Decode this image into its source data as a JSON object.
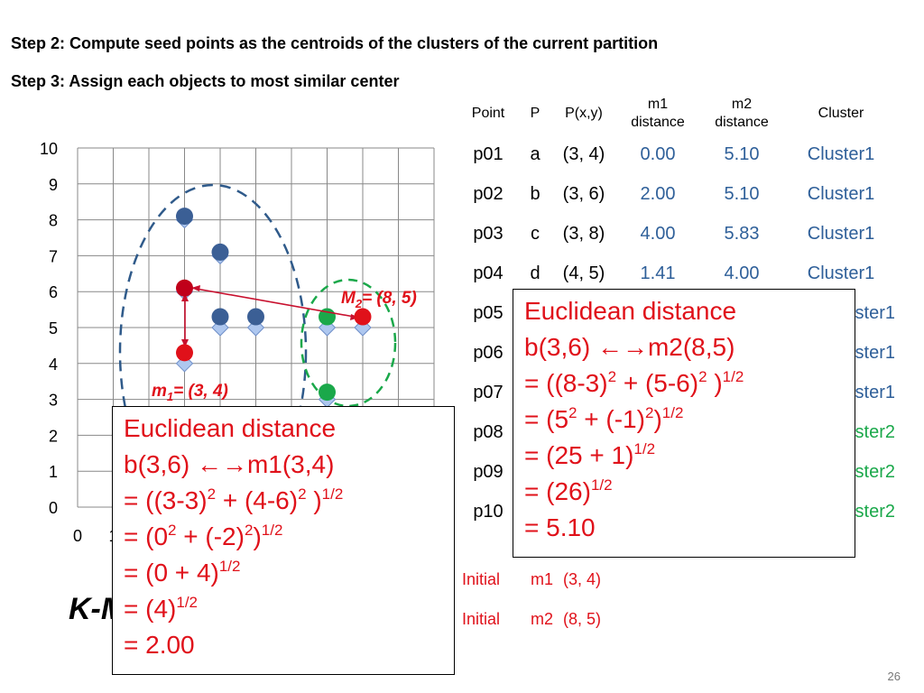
{
  "steps": {
    "step2": "Step 2: Compute seed points as the centroids of the clusters of the current partition",
    "step3": "Step 3: Assign each objects to most similar center"
  },
  "table": {
    "headers": [
      "Point",
      "P",
      "P(x,y)",
      "m1 distance",
      "m2 distance",
      "Cluster"
    ],
    "header_m1": [
      "m1",
      "distance"
    ],
    "header_m2": [
      "m2",
      "distance"
    ],
    "rows": [
      {
        "point": "p01",
        "p": "a",
        "pxy": "(3, 4)",
        "m1": "0.00",
        "m2": "5.10",
        "cluster": "Cluster1"
      },
      {
        "point": "p02",
        "p": "b",
        "pxy": "(3, 6)",
        "m1": "2.00",
        "m2": "5.10",
        "cluster": "Cluster1"
      },
      {
        "point": "p03",
        "p": "c",
        "pxy": "(3, 8)",
        "m1": "4.00",
        "m2": "5.83",
        "cluster": "Cluster1"
      },
      {
        "point": "p04",
        "p": "d",
        "pxy": "(4, 5)",
        "m1": "1.41",
        "m2": "4.00",
        "cluster": "Cluster1"
      },
      {
        "point": "p05",
        "cluster": "ster1"
      },
      {
        "point": "p06",
        "cluster": "ster1"
      },
      {
        "point": "p07",
        "cluster": "ster1"
      },
      {
        "point": "p08",
        "cluster": "ster2"
      },
      {
        "point": "p09",
        "cluster": "ster2"
      },
      {
        "point": "p10",
        "cluster": "ster2"
      }
    ]
  },
  "initial": [
    {
      "label": "Initial",
      "name": "m1",
      "coord": "(3, 4)"
    },
    {
      "label": "Initial",
      "name": "m2",
      "coord": "(8, 5)"
    }
  ],
  "box_right": {
    "line1": "Euclidean distance",
    "line2a": "b(3,6) ",
    "arrow": "←→",
    "line2b": "m2(8,5)",
    "line3a": "= ((8-3)",
    "line3b": " + (5-6)",
    "line3c": " )",
    "sq": "2",
    "half": "1/2",
    "line4a": "= (5",
    "line4b": " + (-1)",
    "line4c": ")",
    "line5": "= (25 + 1)",
    "line6": "= (26)",
    "line7": "= 5.10"
  },
  "box_left": {
    "line1": "Euclidean distance",
    "line2a": "b(3,6) ",
    "arrow": "←→",
    "line2b": "m1(3,4)",
    "line3a": "= ((3-3)",
    "line3b": " + (4-6)",
    "line3c": " )",
    "sq": "2",
    "half": "1/2",
    "line4a": "= (0",
    "line4b": " + (-2)",
    "line4c": ")",
    "line5": "= (0 + 4)",
    "line6": "= (4)",
    "line7": "= 2.00"
  },
  "slide_title": "K-M",
  "page_number": "26",
  "chart_data": {
    "type": "scatter",
    "xlim": [
      0,
      10
    ],
    "ylim": [
      0,
      10
    ],
    "yticks": [
      "0",
      "1",
      "2",
      "3",
      "4",
      "5",
      "6",
      "7",
      "8",
      "9",
      "10"
    ],
    "xticks_visible": [
      "0",
      "1"
    ],
    "grid": true,
    "colors": {
      "cluster1": "#3b5f95",
      "cluster2": "#1aa84a",
      "centroid": "#e0111a",
      "selected": "#c0001a",
      "diamond": "#aec7ef"
    },
    "diamonds": [
      [
        3,
        8
      ],
      [
        4,
        7
      ],
      [
        3,
        6
      ],
      [
        4,
        5
      ],
      [
        5,
        5
      ],
      [
        3,
        4
      ],
      [
        7,
        5
      ],
      [
        8,
        5
      ],
      [
        7,
        3
      ]
    ],
    "cluster1_points": [
      [
        3,
        8.1
      ],
      [
        4,
        7.1
      ],
      [
        4,
        5.3
      ],
      [
        5,
        5.3
      ]
    ],
    "cluster2_points": [
      [
        7,
        5.3
      ],
      [
        7,
        3.2
      ]
    ],
    "centroids": [
      {
        "name": "m1",
        "x": 3,
        "y": 4.3
      },
      {
        "name": "M2",
        "x": 8,
        "y": 5.3
      }
    ],
    "selected_point": {
      "name": "b",
      "x": 3,
      "y": 6.1
    },
    "annotations": {
      "m2_label": "= (8, 5)",
      "m2_name": "M",
      "m2_sub": "2",
      "m1_label": "= (3, 4)",
      "m1_name": "m",
      "m1_sub": "1"
    }
  }
}
